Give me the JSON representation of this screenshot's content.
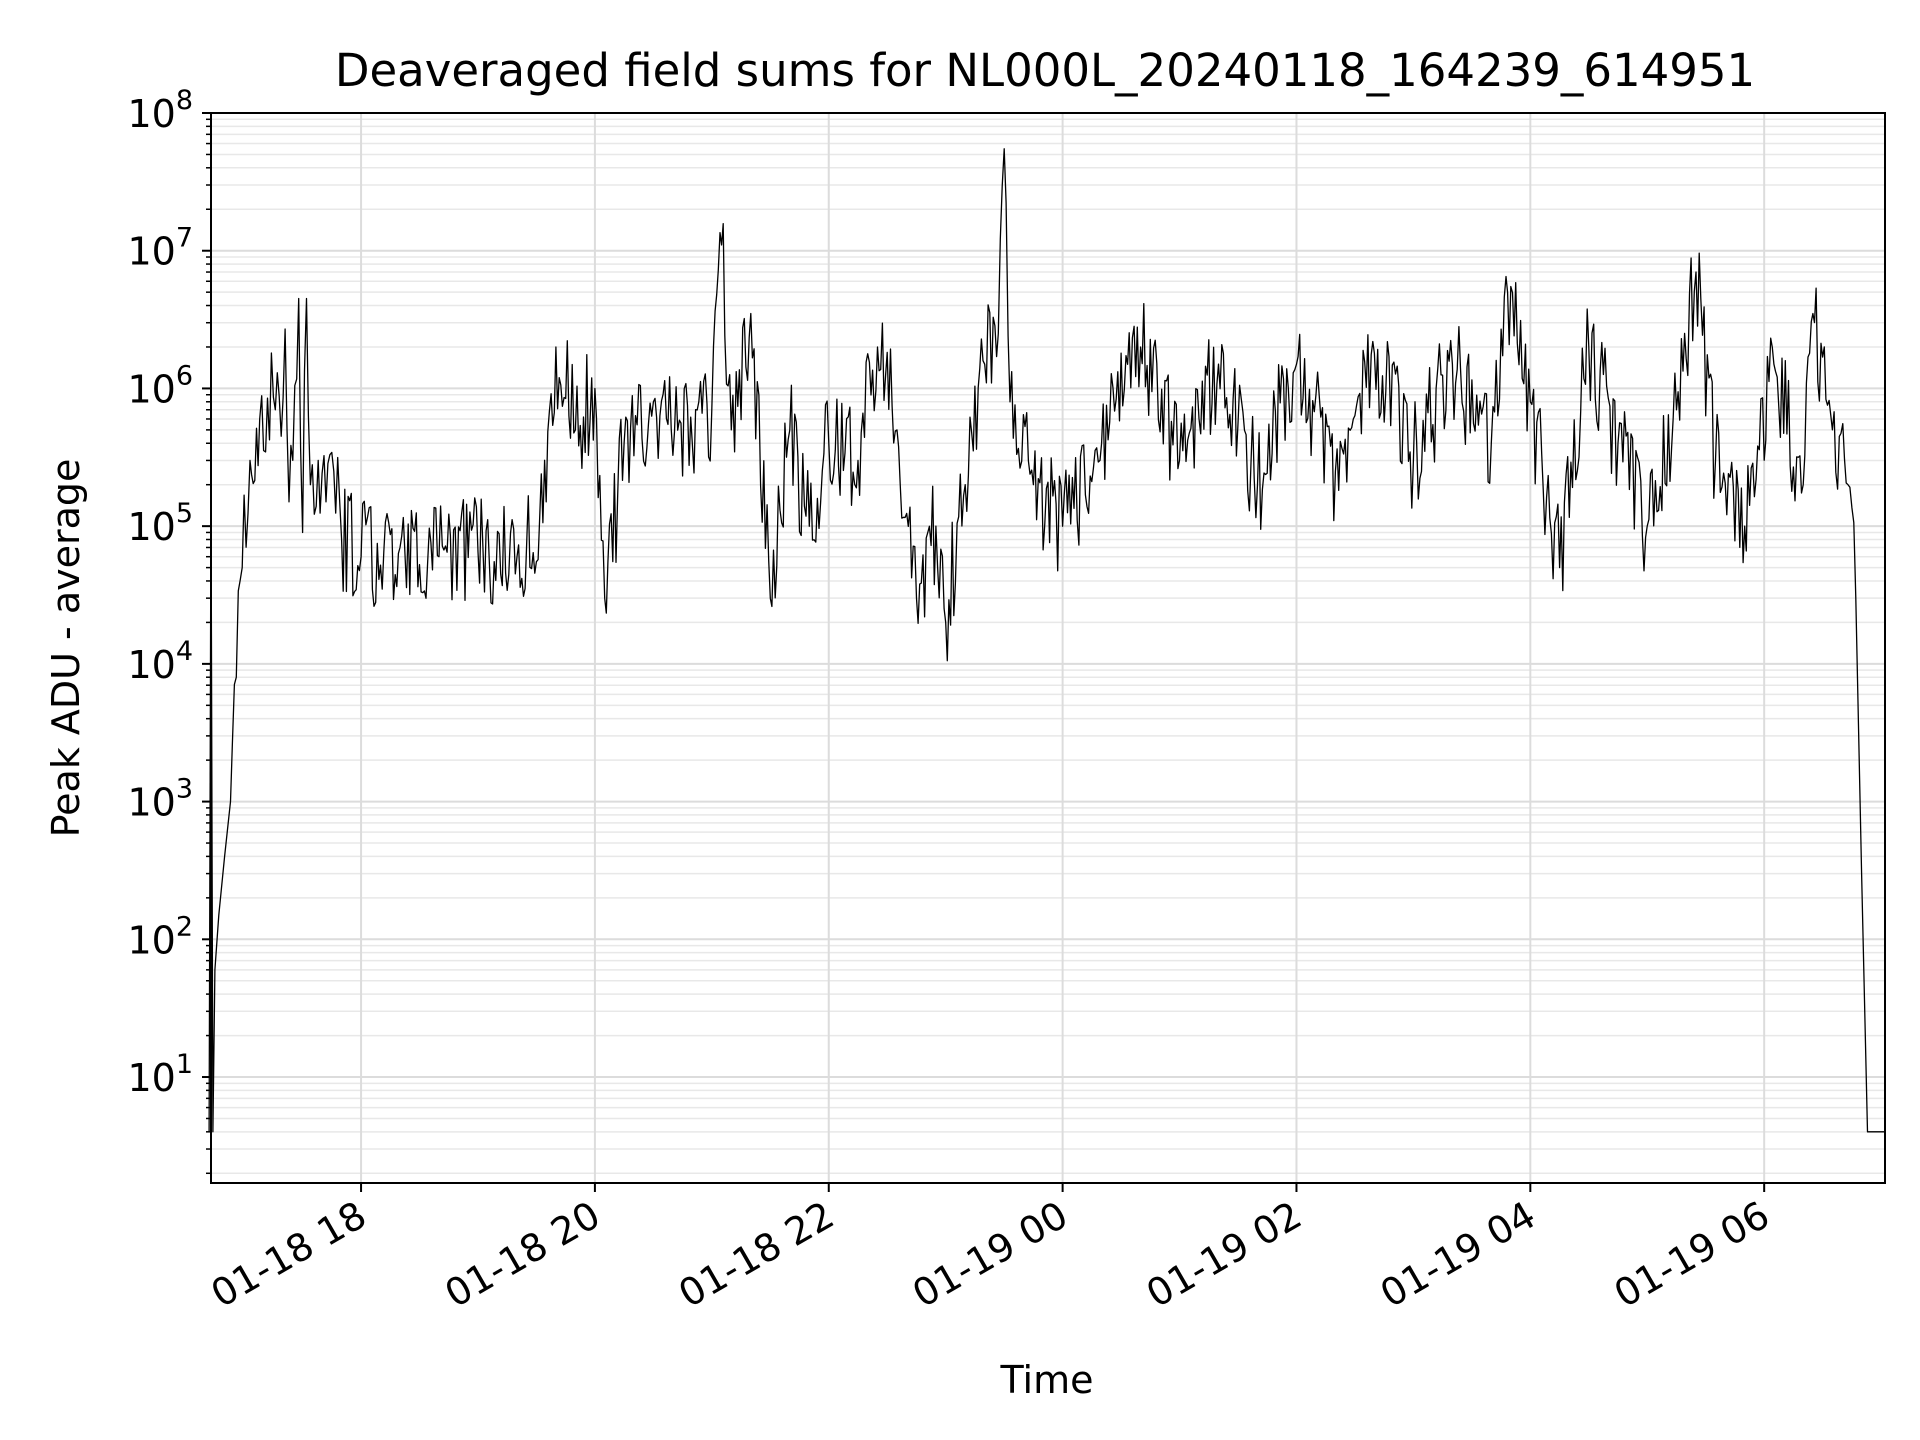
{
  "chart_data": {
    "type": "line",
    "title": "Deaveraged field sums for NL000L_20240118_164239_614951",
    "xlabel": "Time",
    "ylabel": "Peak ADU - average",
    "yscale": "log",
    "ylim": [
      1.7,
      100000000
    ],
    "xlim": [
      "2024-01-18 16:43",
      "2024-01-19 07:02"
    ],
    "grid": "both, major and minor, light gray",
    "legend": "none",
    "line_color": "#000000",
    "x_ticks": [
      {
        "x": "2024-01-18 18:00",
        "label": "01-18 18"
      },
      {
        "x": "2024-01-18 20:00",
        "label": "01-18 20"
      },
      {
        "x": "2024-01-18 22:00",
        "label": "01-18 22"
      },
      {
        "x": "2024-01-19 00:00",
        "label": "01-19 00"
      },
      {
        "x": "2024-01-19 02:00",
        "label": "01-19 02"
      },
      {
        "x": "2024-01-19 04:00",
        "label": "01-19 04"
      },
      {
        "x": "2024-01-19 06:00",
        "label": "01-19 06"
      }
    ],
    "y_ticks": [
      {
        "value": 10,
        "base": "10",
        "exp": "1"
      },
      {
        "value": 100,
        "base": "10",
        "exp": "2"
      },
      {
        "value": 1000,
        "base": "10",
        "exp": "3"
      },
      {
        "value": 10000,
        "base": "10",
        "exp": "4"
      },
      {
        "value": 100000,
        "base": "10",
        "exp": "5"
      },
      {
        "value": 1000000,
        "base": "10",
        "exp": "6"
      },
      {
        "value": 10000000,
        "base": "10",
        "exp": "7"
      },
      {
        "value": 100000000,
        "base": "10",
        "exp": "8"
      }
    ],
    "series": [
      {
        "values": [
          [
            "2024-01-18 16:42",
            4
          ],
          [
            "2024-01-18 16:43",
            180000
          ],
          [
            "2024-01-18 16:44",
            4
          ],
          [
            "2024-01-18 16:45",
            60
          ],
          [
            "2024-01-18 16:47",
            150
          ],
          [
            "2024-01-18 16:50",
            400
          ],
          [
            "2024-01-18 16:53",
            1000
          ],
          [
            "2024-01-18 16:56",
            8000
          ],
          [
            "2024-01-18 16:59",
            50000
          ],
          [
            "2024-01-18 17:03",
            300000
          ],
          [
            "2024-01-18 17:08",
            600000
          ],
          [
            "2024-01-18 17:12",
            850000
          ],
          [
            "2024-01-18 17:16",
            700000
          ],
          [
            "2024-01-18 17:19",
            450000
          ],
          [
            "2024-01-18 17:21",
            2700000
          ],
          [
            "2024-01-18 17:23",
            150000
          ],
          [
            "2024-01-18 17:25",
            300000
          ],
          [
            "2024-01-18 17:28",
            4500000
          ],
          [
            "2024-01-18 17:30",
            90000
          ],
          [
            "2024-01-18 17:32",
            4500000
          ],
          [
            "2024-01-18 17:34",
            200000
          ],
          [
            "2024-01-18 17:38",
            300000
          ],
          [
            "2024-01-18 17:42",
            150000
          ],
          [
            "2024-01-18 17:46",
            250000
          ],
          [
            "2024-01-18 17:50",
            80000
          ],
          [
            "2024-01-18 18:00",
            60000
          ],
          [
            "2024-01-18 18:20",
            70000
          ],
          [
            "2024-01-18 18:40",
            60000
          ],
          [
            "2024-01-18 19:00",
            65000
          ],
          [
            "2024-01-18 19:20",
            60000
          ],
          [
            "2024-01-18 19:35",
            150000
          ],
          [
            "2024-01-18 19:40",
            2000000
          ],
          [
            "2024-01-18 19:50",
            500000
          ],
          [
            "2024-01-18 20:00",
            1000000
          ],
          [
            "2024-01-18 20:05",
            30000
          ],
          [
            "2024-01-18 20:15",
            400000
          ],
          [
            "2024-01-18 20:30",
            800000
          ],
          [
            "2024-01-18 20:50",
            400000
          ],
          [
            "2024-01-18 21:00",
            700000
          ],
          [
            "2024-01-18 21:05",
            11000000
          ],
          [
            "2024-01-18 21:10",
            500000
          ],
          [
            "2024-01-18 21:20",
            3500000
          ],
          [
            "2024-01-18 21:30",
            30000
          ],
          [
            "2024-01-18 21:40",
            500000
          ],
          [
            "2024-01-18 21:50",
            100000
          ],
          [
            "2024-01-18 22:00",
            400000
          ],
          [
            "2024-01-18 22:15",
            300000
          ],
          [
            "2024-01-18 22:25",
            2000000
          ],
          [
            "2024-01-18 22:35",
            500000
          ],
          [
            "2024-01-18 22:45",
            30000
          ],
          [
            "2024-01-18 22:55",
            100000
          ],
          [
            "2024-01-18 23:00",
            20000
          ],
          [
            "2024-01-18 23:10",
            200000
          ],
          [
            "2024-01-18 23:20",
            1500000
          ],
          [
            "2024-01-18 23:27",
            2500000
          ],
          [
            "2024-01-18 23:30",
            55000000
          ],
          [
            "2024-01-18 23:33",
            800000
          ],
          [
            "2024-01-18 23:45",
            200000
          ],
          [
            "2024-01-19 00:00",
            100000
          ],
          [
            "2024-01-19 00:20",
            400000
          ],
          [
            "2024-01-19 00:40",
            2000000
          ],
          [
            "2024-01-19 01:00",
            300000
          ],
          [
            "2024-01-19 01:20",
            1500000
          ],
          [
            "2024-01-19 01:40",
            200000
          ],
          [
            "2024-01-19 02:00",
            1500000
          ],
          [
            "2024-01-19 02:20",
            250000
          ],
          [
            "2024-01-19 02:40",
            1800000
          ],
          [
            "2024-01-19 03:00",
            300000
          ],
          [
            "2024-01-19 03:20",
            1500000
          ],
          [
            "2024-01-19 03:40",
            400000
          ],
          [
            "2024-01-19 03:50",
            5500000
          ],
          [
            "2024-01-19 04:00",
            800000
          ],
          [
            "2024-01-19 04:15",
            50000
          ],
          [
            "2024-01-19 04:30",
            2000000
          ],
          [
            "2024-01-19 04:45",
            400000
          ],
          [
            "2024-01-19 05:00",
            100000
          ],
          [
            "2024-01-19 05:15",
            700000
          ],
          [
            "2024-01-19 05:25",
            7000000
          ],
          [
            "2024-01-19 05:35",
            300000
          ],
          [
            "2024-01-19 05:50",
            100000
          ],
          [
            "2024-01-19 06:05",
            1500000
          ],
          [
            "2024-01-19 06:20",
            200000
          ],
          [
            "2024-01-19 06:25",
            3500000
          ],
          [
            "2024-01-19 06:35",
            500000
          ],
          [
            "2024-01-19 06:43",
            200000
          ],
          [
            "2024-01-19 06:47",
            30000
          ],
          [
            "2024-01-19 06:50",
            300
          ],
          [
            "2024-01-19 06:53",
            4
          ],
          [
            "2024-01-19 07:02",
            4
          ]
        ]
      }
    ]
  }
}
